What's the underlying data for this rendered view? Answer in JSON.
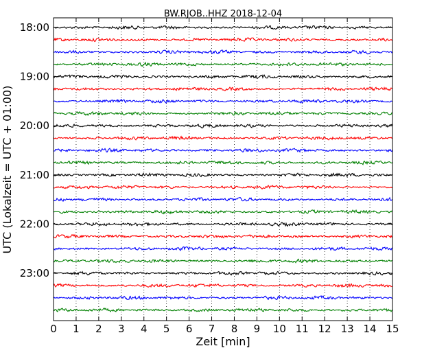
{
  "chart_data": {
    "type": "line",
    "title": "BW.RJOB..HHZ 2018-12-04",
    "xlabel": "Zeit  [min]",
    "ylabel": "UTC (Lokalzeit = UTC + 01:00)",
    "xlim": [
      0,
      15
    ],
    "x_ticks": [
      "0",
      "1",
      "2",
      "3",
      "4",
      "5",
      "6",
      "7",
      "8",
      "9",
      "10",
      "11",
      "12",
      "13",
      "14",
      "15"
    ],
    "y_ticks": [
      "18:00",
      "19:00",
      "20:00",
      "21:00",
      "22:00",
      "23:00"
    ],
    "grid": "vertical dotted",
    "trace_colors": [
      "#000000",
      "#ff0000",
      "#0000ff",
      "#008000"
    ],
    "trace_count": 24,
    "trace_interval_minutes": 15,
    "first_trace_start": "18:00",
    "last_trace_start": "23:45"
  }
}
